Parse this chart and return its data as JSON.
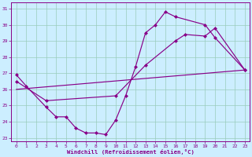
{
  "xlabel": "Windchill (Refroidissement éolien,°C)",
  "line_color": "#880088",
  "bg_color": "#cceeff",
  "grid_color": "#99ccbb",
  "xmin": -0.5,
  "xmax": 23.5,
  "ymin": 22.8,
  "ymax": 31.4,
  "xticks": [
    0,
    1,
    2,
    3,
    4,
    5,
    6,
    7,
    8,
    9,
    10,
    11,
    12,
    13,
    14,
    15,
    16,
    17,
    18,
    19,
    20,
    21,
    22,
    23
  ],
  "yticks": [
    23,
    24,
    25,
    26,
    27,
    28,
    29,
    30,
    31
  ],
  "line1": [
    [
      0,
      26.9
    ],
    [
      1,
      26.2
    ],
    [
      3,
      24.9
    ],
    [
      4,
      24.3
    ],
    [
      5,
      24.3
    ],
    [
      6,
      23.6
    ],
    [
      7,
      23.3
    ],
    [
      8,
      23.3
    ],
    [
      9,
      23.2
    ],
    [
      10,
      24.1
    ],
    [
      11,
      25.6
    ],
    [
      12,
      27.4
    ],
    [
      13,
      29.5
    ],
    [
      14,
      30.0
    ],
    [
      15,
      30.8
    ],
    [
      16,
      30.5
    ],
    [
      19,
      30.0
    ],
    [
      20,
      29.2
    ],
    [
      23,
      27.2
    ]
  ],
  "line2": [
    [
      0,
      26.5
    ],
    [
      3,
      25.3
    ],
    [
      10,
      25.6
    ],
    [
      13,
      27.5
    ],
    [
      16,
      29.0
    ],
    [
      17,
      29.4
    ],
    [
      19,
      29.3
    ],
    [
      20,
      29.8
    ],
    [
      23,
      27.2
    ]
  ],
  "line3": [
    [
      0,
      26.0
    ],
    [
      23,
      27.2
    ]
  ]
}
